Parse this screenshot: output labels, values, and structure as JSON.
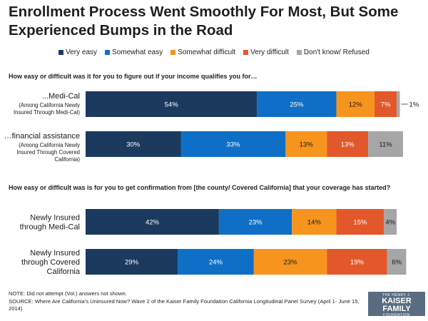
{
  "title": "Enrollment Process Went Smoothly For Most, But Some Experienced Bumps in the Road",
  "legend": [
    {
      "label": "Very easy",
      "color": "#1b3a5e"
    },
    {
      "label": "Somewhat easy",
      "color": "#0f6fc6"
    },
    {
      "label": "Somewhat difficult",
      "color": "#f7941d"
    },
    {
      "label": "Very difficult",
      "color": "#e2582a"
    },
    {
      "label": "Don't know/ Refused",
      "color": "#a6a6a6"
    }
  ],
  "questions": [
    "How easy or difficult was it for you to figure out if your income qualifies you for…",
    "How easy or difficult was is for you to get confirmation from [the county/ Covered California] that your coverage has started?"
  ],
  "chart_data": {
    "type": "bar",
    "orientation": "horizontal",
    "stacked": true,
    "unit": "%",
    "series_names": [
      "Very easy",
      "Somewhat easy",
      "Somewhat difficult",
      "Very difficult",
      "Don't know/ Refused"
    ],
    "rows": [
      {
        "label": "...Medi-Cal",
        "sublabel": "(Among California Newly Insured Through Medi-Cal)",
        "values": [
          54,
          25,
          12,
          7,
          1
        ],
        "outside_label": "1%"
      },
      {
        "label": "…financial assistance",
        "sublabel": "(Among California Newly Insured Through Covered California)",
        "values": [
          30,
          33,
          13,
          13,
          11
        ]
      },
      {
        "label": "Newly Insured through Medi-Cal",
        "sublabel": "",
        "values": [
          42,
          23,
          14,
          15,
          4
        ]
      },
      {
        "label": "Newly Insured through Covered California",
        "sublabel": "",
        "values": [
          29,
          24,
          23,
          19,
          6
        ]
      }
    ]
  },
  "note": "NOTE: Did not attempt (Vol.) answers not shown.",
  "source": "SOURCE: Where Are California's Uninsured Now? Wave 2 of the Kaiser Family Foundation California Longitudinal Panel Survey (April 1- June 15, 2014)",
  "logo": {
    "line1": "THE HENRY J.",
    "line2": "KAISER",
    "line3": "FAMILY",
    "line4": "FOUNDATION"
  }
}
